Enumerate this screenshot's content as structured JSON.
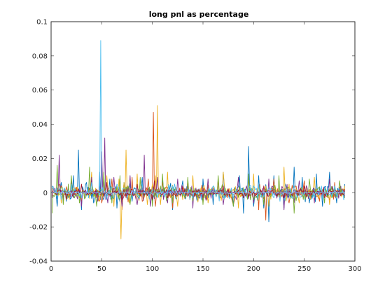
{
  "chart_data": {
    "type": "line",
    "title": "long pnl as percentage",
    "xlabel": "",
    "ylabel": "",
    "xlim": [
      0,
      300
    ],
    "ylim": [
      -0.04,
      0.1
    ],
    "x_ticks": [
      0,
      50,
      100,
      150,
      200,
      250,
      300
    ],
    "x_tick_labels": [
      "0",
      "50",
      "100",
      "150",
      "200",
      "250",
      "300"
    ],
    "y_ticks": [
      -0.04,
      -0.02,
      0,
      0.02,
      0.04,
      0.06,
      0.08,
      0.1
    ],
    "y_tick_labels": [
      "-0.04",
      "-0.02",
      "0",
      "0.02",
      "0.04",
      "0.06",
      "0.08",
      "0.1"
    ],
    "grid": false,
    "legend": "none",
    "x_range_data": [
      1,
      290
    ],
    "series": [
      {
        "color": "#0072BD",
        "points": [
          [
            1,
            0.004
          ],
          [
            6,
            -0.008
          ],
          [
            10,
            0.006
          ],
          [
            15,
            -0.005
          ],
          [
            22,
            0.01
          ],
          [
            27,
            0.025
          ],
          [
            30,
            -0.01
          ],
          [
            35,
            0.006
          ],
          [
            42,
            -0.006
          ],
          [
            48,
            0.012
          ],
          [
            52,
            -0.004
          ],
          [
            58,
            0.008
          ],
          [
            65,
            -0.009
          ],
          [
            72,
            0.006
          ],
          [
            80,
            -0.005
          ],
          [
            90,
            0.009
          ],
          [
            100,
            -0.006
          ],
          [
            110,
            0.008
          ],
          [
            120,
            -0.01
          ],
          [
            130,
            0.007
          ],
          [
            140,
            -0.005
          ],
          [
            150,
            0.008
          ],
          [
            160,
            -0.007
          ],
          [
            170,
            0.012
          ],
          [
            180,
            -0.008
          ],
          [
            186,
            0.01
          ],
          [
            190,
            -0.012
          ],
          [
            195,
            0.027
          ],
          [
            200,
            -0.008
          ],
          [
            205,
            0.01
          ],
          [
            210,
            -0.009
          ],
          [
            215,
            -0.017
          ],
          [
            220,
            0.01
          ],
          [
            230,
            -0.009
          ],
          [
            240,
            0.015
          ],
          [
            248,
            0.009
          ],
          [
            255,
            -0.006
          ],
          [
            262,
            0.011
          ],
          [
            268,
            -0.008
          ],
          [
            275,
            0.012
          ],
          [
            282,
            -0.006
          ],
          [
            290,
            0.005
          ]
        ]
      },
      {
        "color": "#D95319",
        "points": [
          [
            1,
            -0.002
          ],
          [
            8,
            0.005
          ],
          [
            12,
            -0.004
          ],
          [
            20,
            0.006
          ],
          [
            30,
            -0.005
          ],
          [
            40,
            0.007
          ],
          [
            50,
            -0.006
          ],
          [
            60,
            0.008
          ],
          [
            70,
            -0.01
          ],
          [
            80,
            0.009
          ],
          [
            90,
            -0.005
          ],
          [
            96,
            0.008
          ],
          [
            101,
            0.047
          ],
          [
            103,
            -0.008
          ],
          [
            110,
            0.006
          ],
          [
            120,
            -0.009
          ],
          [
            135,
            0.007
          ],
          [
            150,
            -0.006
          ],
          [
            165,
            0.008
          ],
          [
            180,
            -0.007
          ],
          [
            195,
            0.009
          ],
          [
            205,
            -0.01
          ],
          [
            212,
            -0.016
          ],
          [
            220,
            0.008
          ],
          [
            235,
            -0.006
          ],
          [
            250,
            0.007
          ],
          [
            265,
            -0.005
          ],
          [
            280,
            0.006
          ],
          [
            290,
            -0.003
          ]
        ]
      },
      {
        "color": "#EDB120",
        "points": [
          [
            1,
            0.003
          ],
          [
            10,
            -0.006
          ],
          [
            20,
            0.008
          ],
          [
            30,
            -0.004
          ],
          [
            40,
            0.012
          ],
          [
            48,
            -0.005
          ],
          [
            55,
            0.01
          ],
          [
            62,
            -0.008
          ],
          [
            67,
            0.008
          ],
          [
            69,
            -0.027
          ],
          [
            72,
            0.006
          ],
          [
            74,
            0.025
          ],
          [
            77,
            -0.006
          ],
          [
            85,
            0.011
          ],
          [
            95,
            -0.007
          ],
          [
            103,
            0.01
          ],
          [
            105,
            0.051
          ],
          [
            108,
            -0.007
          ],
          [
            115,
            0.012
          ],
          [
            125,
            -0.008
          ],
          [
            140,
            0.01
          ],
          [
            155,
            -0.006
          ],
          [
            170,
            0.012
          ],
          [
            185,
            -0.009
          ],
          [
            200,
            0.011
          ],
          [
            215,
            -0.008
          ],
          [
            230,
            0.015
          ],
          [
            245,
            -0.006
          ],
          [
            260,
            0.009
          ],
          [
            275,
            -0.007
          ],
          [
            290,
            0.004
          ]
        ]
      },
      {
        "color": "#7E2F8E",
        "points": [
          [
            1,
            -0.003
          ],
          [
            8,
            0.022
          ],
          [
            12,
            -0.006
          ],
          [
            20,
            0.007
          ],
          [
            30,
            -0.008
          ],
          [
            40,
            0.009
          ],
          [
            46,
            -0.005
          ],
          [
            50,
            0.024
          ],
          [
            53,
            0.032
          ],
          [
            56,
            -0.006
          ],
          [
            62,
            0.009
          ],
          [
            70,
            -0.008
          ],
          [
            78,
            0.01
          ],
          [
            85,
            -0.007
          ],
          [
            92,
            0.022
          ],
          [
            98,
            -0.008
          ],
          [
            105,
            0.009
          ],
          [
            115,
            -0.006
          ],
          [
            125,
            0.008
          ],
          [
            140,
            -0.009
          ],
          [
            155,
            0.008
          ],
          [
            170,
            -0.007
          ],
          [
            185,
            0.009
          ],
          [
            200,
            -0.006
          ],
          [
            215,
            0.008
          ],
          [
            230,
            -0.01
          ],
          [
            245,
            0.007
          ],
          [
            260,
            -0.006
          ],
          [
            275,
            0.008
          ],
          [
            290,
            -0.002
          ]
        ]
      },
      {
        "color": "#77AC30",
        "points": [
          [
            1,
            -0.012
          ],
          [
            6,
            0.016
          ],
          [
            12,
            -0.007
          ],
          [
            20,
            0.01
          ],
          [
            28,
            -0.006
          ],
          [
            38,
            0.015
          ],
          [
            45,
            -0.008
          ],
          [
            52,
            0.012
          ],
          [
            60,
            -0.006
          ],
          [
            68,
            0.01
          ],
          [
            78,
            -0.007
          ],
          [
            88,
            0.009
          ],
          [
            100,
            -0.008
          ],
          [
            110,
            0.011
          ],
          [
            120,
            -0.006
          ],
          [
            135,
            0.009
          ],
          [
            150,
            -0.007
          ],
          [
            165,
            0.01
          ],
          [
            180,
            -0.008
          ],
          [
            195,
            0.011
          ],
          [
            210,
            -0.007
          ],
          [
            225,
            0.01
          ],
          [
            240,
            -0.012
          ],
          [
            255,
            0.008
          ],
          [
            270,
            -0.006
          ],
          [
            285,
            0.007
          ],
          [
            290,
            -0.003
          ]
        ]
      },
      {
        "color": "#4DBEEE",
        "points": [
          [
            1,
            0.002
          ],
          [
            10,
            -0.004
          ],
          [
            20,
            0.005
          ],
          [
            30,
            -0.003
          ],
          [
            40,
            0.006
          ],
          [
            45,
            -0.002
          ],
          [
            49,
            0.089
          ],
          [
            51,
            0.003
          ],
          [
            55,
            -0.004
          ],
          [
            65,
            0.005
          ],
          [
            75,
            -0.004
          ],
          [
            90,
            0.005
          ],
          [
            105,
            -0.003
          ],
          [
            120,
            0.004
          ],
          [
            140,
            -0.003
          ],
          [
            160,
            0.004
          ],
          [
            180,
            -0.003
          ],
          [
            200,
            0.004
          ],
          [
            220,
            -0.003
          ],
          [
            240,
            0.004
          ],
          [
            260,
            -0.003
          ],
          [
            280,
            0.004
          ],
          [
            290,
            0.001
          ]
        ]
      },
      {
        "color": "#A2142F",
        "points": [
          [
            1,
            0.001
          ],
          [
            15,
            -0.004
          ],
          [
            30,
            0.005
          ],
          [
            45,
            -0.003
          ],
          [
            55,
            0.006
          ],
          [
            70,
            -0.004
          ],
          [
            85,
            0.005
          ],
          [
            100,
            -0.004
          ],
          [
            102,
            0.007
          ],
          [
            115,
            -0.003
          ],
          [
            130,
            0.004
          ],
          [
            150,
            -0.003
          ],
          [
            170,
            0.004
          ],
          [
            190,
            -0.003
          ],
          [
            210,
            0.004
          ],
          [
            230,
            -0.003
          ],
          [
            250,
            0.004
          ],
          [
            270,
            -0.003
          ],
          [
            290,
            0.002
          ]
        ]
      },
      {
        "color": "#80B3FF",
        "points": [
          [
            1,
            0.0005
          ],
          [
            20,
            -0.0015
          ],
          [
            40,
            0.0018
          ],
          [
            60,
            -0.0012
          ],
          [
            80,
            0.0015
          ],
          [
            100,
            -0.0013
          ],
          [
            120,
            0.0016
          ],
          [
            140,
            -0.0012
          ],
          [
            160,
            0.0014
          ],
          [
            180,
            -0.0013
          ],
          [
            200,
            0.0015
          ],
          [
            220,
            -0.0012
          ],
          [
            240,
            0.0014
          ],
          [
            260,
            -0.0011
          ],
          [
            280,
            0.0013
          ],
          [
            290,
            0.0003
          ]
        ]
      }
    ]
  }
}
